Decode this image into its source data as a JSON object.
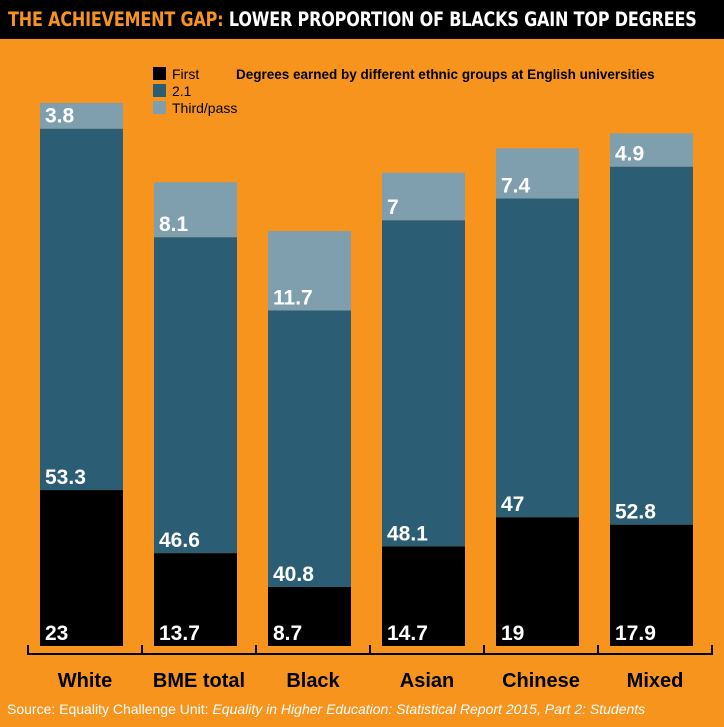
{
  "title": {
    "highlight": "THE ACHIEVEMENT GAP:",
    "rest": " LOWER PROPORTION OF BLACKS GAIN TOP DEGREES"
  },
  "source": {
    "prefix": "Source: Equality Challenge Unit: ",
    "title": "Equality in Higher Education: Statistical Report 2015, Part 2: Students"
  },
  "colors": {
    "background": "#f7941d",
    "first": "#000000",
    "two_one": "#2b5d75",
    "third_pass": "#7f9fae",
    "text": "#ffffff"
  },
  "chart_data": {
    "type": "bar",
    "stacked": true,
    "title": "Degrees earned by different ethnic groups at English universities",
    "xlabel": "",
    "ylabel": "",
    "ylim": [
      0,
      100
    ],
    "categories": [
      "White",
      "BME total",
      "Black",
      "Asian",
      "Chinese",
      "Mixed"
    ],
    "series": [
      {
        "name": "First",
        "color": "#000000",
        "values": [
          23,
          13.7,
          8.7,
          14.7,
          19,
          17.9
        ]
      },
      {
        "name": "2.1",
        "color": "#2b5d75",
        "values": [
          53.3,
          46.6,
          40.8,
          48.1,
          47,
          52.8
        ]
      },
      {
        "name": "Third/pass",
        "color": "#7f9fae",
        "values": [
          3.8,
          8.1,
          11.7,
          7,
          7.4,
          4.9
        ]
      }
    ],
    "legend_position": "top-left"
  }
}
